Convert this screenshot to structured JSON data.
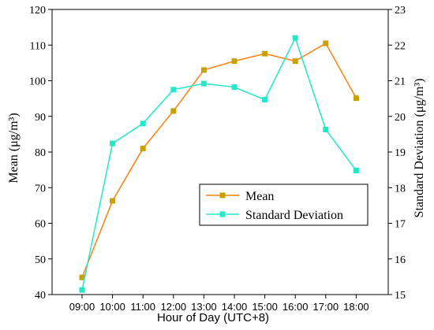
{
  "chart_data": {
    "type": "line",
    "categories": [
      "09:00",
      "10:00",
      "11:00",
      "12:00",
      "13:00",
      "14:00",
      "15:00",
      "16:00",
      "17:00",
      "18:00"
    ],
    "xlabel": "Hour of  Day (UTC+8)",
    "ylabel_left": "Mean (μg/m³)",
    "ylabel_right": "Standard Deviation (μg/m³)",
    "ylim_left": [
      40,
      120
    ],
    "yticks_left": [
      40,
      50,
      60,
      70,
      80,
      90,
      100,
      110,
      120
    ],
    "ylim_right": [
      15,
      23
    ],
    "yticks_right": [
      15,
      16,
      17,
      18,
      19,
      20,
      21,
      22,
      23
    ],
    "grid": false,
    "legend_position": "center-right",
    "series": [
      {
        "name": "Mean",
        "axis": "left",
        "line_color": "#ff7f0e",
        "marker_color": "#c8a000",
        "values": [
          44.8,
          66.3,
          81.0,
          91.5,
          103.0,
          105.5,
          107.6,
          105.5,
          110.5,
          95.1
        ]
      },
      {
        "name": "Standard Deviation",
        "axis": "right",
        "line_color": "#22e8c8",
        "marker_color": "#22e8c8",
        "values": [
          15.13,
          19.24,
          19.8,
          20.75,
          20.92,
          20.82,
          20.47,
          22.2,
          19.63,
          18.48
        ]
      }
    ]
  }
}
